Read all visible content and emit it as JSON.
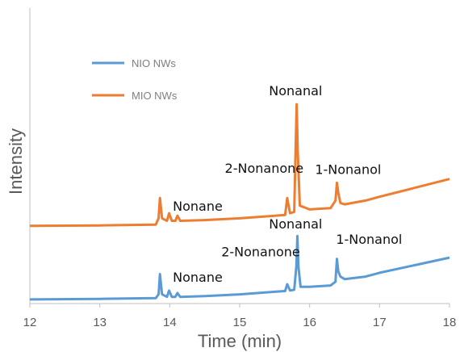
{
  "chart_data": {
    "type": "line",
    "xlabel": "Time (min)",
    "ylabel": "Intensity",
    "xlim": [
      12,
      18
    ],
    "ylim": [
      0,
      100
    ],
    "x_ticks": [
      "12",
      "13",
      "14",
      "15",
      "16",
      "17",
      "18"
    ],
    "grid": false,
    "legend_position": "top-left",
    "series": [
      {
        "name": "NIO NWs",
        "color": "#5b9bd5",
        "points": [
          [
            12.0,
            1.0
          ],
          [
            13.0,
            1.2
          ],
          [
            13.8,
            1.5
          ],
          [
            13.84,
            3.0
          ],
          [
            13.86,
            11.0
          ],
          [
            13.89,
            3.0
          ],
          [
            13.96,
            2.0
          ],
          [
            13.99,
            4.5
          ],
          [
            14.03,
            2.0
          ],
          [
            14.08,
            2.0
          ],
          [
            14.11,
            3.5
          ],
          [
            14.15,
            2.0
          ],
          [
            14.5,
            2.3
          ],
          [
            15.0,
            3.0
          ],
          [
            15.5,
            4.0
          ],
          [
            15.65,
            4.3
          ],
          [
            15.68,
            7.0
          ],
          [
            15.72,
            4.5
          ],
          [
            15.78,
            4.8
          ],
          [
            15.81,
            14.0
          ],
          [
            15.825,
            26.0
          ],
          [
            15.84,
            14.0
          ],
          [
            15.87,
            6.0
          ],
          [
            16.0,
            6.0
          ],
          [
            16.3,
            6.5
          ],
          [
            16.37,
            8.0
          ],
          [
            16.39,
            17.0
          ],
          [
            16.41,
            12.0
          ],
          [
            16.44,
            10.0
          ],
          [
            16.5,
            9.0
          ],
          [
            16.8,
            10.0
          ],
          [
            17.0,
            11.5
          ],
          [
            17.5,
            14.5
          ],
          [
            18.0,
            17.5
          ]
        ]
      },
      {
        "name": "MIO NWs",
        "color": "#ed7d31",
        "points": [
          [
            12.0,
            30.0
          ],
          [
            13.0,
            30.2
          ],
          [
            13.8,
            30.5
          ],
          [
            13.84,
            33.0
          ],
          [
            13.86,
            41.0
          ],
          [
            13.89,
            33.0
          ],
          [
            13.96,
            32.0
          ],
          [
            13.99,
            35.0
          ],
          [
            14.03,
            32.0
          ],
          [
            14.08,
            32.0
          ],
          [
            14.11,
            34.0
          ],
          [
            14.15,
            32.0
          ],
          [
            14.5,
            32.3
          ],
          [
            15.0,
            33.0
          ],
          [
            15.5,
            34.0
          ],
          [
            15.65,
            34.3
          ],
          [
            15.68,
            41.0
          ],
          [
            15.72,
            35.0
          ],
          [
            15.78,
            35.5
          ],
          [
            15.8,
            60.0
          ],
          [
            15.815,
            78.0
          ],
          [
            15.83,
            60.0
          ],
          [
            15.86,
            38.0
          ],
          [
            16.0,
            36.5
          ],
          [
            16.3,
            37.0
          ],
          [
            16.37,
            40.0
          ],
          [
            16.39,
            47.0
          ],
          [
            16.41,
            43.0
          ],
          [
            16.44,
            39.0
          ],
          [
            16.5,
            38.5
          ],
          [
            16.8,
            40.0
          ],
          [
            17.0,
            41.5
          ],
          [
            17.5,
            45.0
          ],
          [
            18.0,
            48.5
          ]
        ]
      }
    ],
    "annotations": [
      {
        "text": "Nonanal",
        "x": 15.8,
        "y": 81.5,
        "anchor": "middle",
        "series": "MIO NWs"
      },
      {
        "text": "2-Nonanone",
        "x": 15.35,
        "y": 51.0,
        "anchor": "middle",
        "series": "MIO NWs"
      },
      {
        "text": "1-Nonanol",
        "x": 16.55,
        "y": 50.5,
        "anchor": "middle",
        "series": "MIO NWs"
      },
      {
        "text": "Nonane",
        "x": 14.4,
        "y": 36.0,
        "anchor": "middle",
        "series": "MIO NWs"
      },
      {
        "text": "Nonanal",
        "x": 15.8,
        "y": 29.0,
        "anchor": "middle",
        "series": "NIO NWs"
      },
      {
        "text": "2-Nonanone",
        "x": 15.3,
        "y": 18.0,
        "anchor": "middle",
        "series": "NIO NWs"
      },
      {
        "text": "1-Nonanol",
        "x": 16.85,
        "y": 23.0,
        "anchor": "middle",
        "series": "NIO NWs"
      },
      {
        "text": "Nonane",
        "x": 14.4,
        "y": 8.0,
        "anchor": "middle",
        "series": "NIO NWs"
      }
    ]
  }
}
